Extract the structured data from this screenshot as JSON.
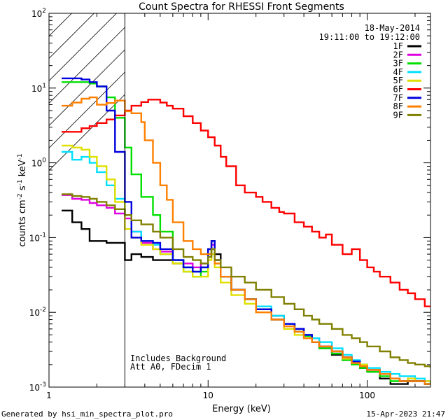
{
  "footer": {
    "generated_by": "Generated by hsi_min_spectra_plot.pro",
    "timestamp": "15-Apr-2023 21:47"
  },
  "chart_data": {
    "type": "line",
    "title": "Count Spectra for RHESSI Front Segments",
    "xlabel": "Energy (keV)",
    "ylabel_parts": {
      "base": "counts cm",
      "exp1": "-2",
      "s": " s",
      "exp2": "-1",
      "kev": " keV",
      "exp3": "-1"
    },
    "xscale": "log",
    "yscale": "log",
    "xlim": [
      1,
      250
    ],
    "ylim": [
      0.001,
      100
    ],
    "x_ticks": [
      {
        "value": 1,
        "label": "1"
      },
      {
        "value": 10,
        "label": "10"
      },
      {
        "value": 100,
        "label": "100"
      }
    ],
    "y_ticks": [
      {
        "value": 0.001,
        "base": "10",
        "exp": "-3"
      },
      {
        "value": 0.01,
        "base": "10",
        "exp": "-2"
      },
      {
        "value": 0.1,
        "base": "10",
        "exp": "-1"
      },
      {
        "value": 1,
        "base": "10",
        "exp": "0"
      },
      {
        "value": 10,
        "base": "10",
        "exp": "1"
      },
      {
        "value": 100,
        "base": "10",
        "exp": "2"
      }
    ],
    "hatched_region": {
      "x_min": 1,
      "x_max": 3
    },
    "date": "18-May-2014",
    "time_range": "19:11:00 to 19:12:00",
    "annotations": [
      "Includes Background",
      "Att A0, FDecim 1"
    ],
    "legend_position": "top-right",
    "series": [
      {
        "name": "1F",
        "color": "#000000",
        "x": [
          1.2,
          1.4,
          1.6,
          1.8,
          2.0,
          2.3,
          2.6,
          3.0,
          3.3,
          3.8,
          4.5,
          5,
          6,
          7,
          8,
          9,
          10,
          10.5,
          11,
          12,
          14,
          17,
          20,
          25,
          30,
          35,
          40,
          45,
          50,
          60,
          70,
          80,
          90,
          100,
          120,
          140,
          160,
          180,
          200,
          230,
          250
        ],
        "y": [
          0.23,
          0.16,
          0.13,
          0.09,
          0.09,
          0.085,
          0.085,
          0.05,
          0.06,
          0.055,
          0.05,
          0.05,
          0.045,
          0.04,
          0.035,
          0.04,
          0.07,
          0.09,
          0.06,
          0.03,
          0.02,
          0.015,
          0.011,
          0.009,
          0.007,
          0.006,
          0.005,
          0.004,
          0.0033,
          0.0027,
          0.0023,
          0.002,
          0.0018,
          0.0016,
          0.0013,
          0.0011,
          0.0011,
          0.0012,
          0.0012,
          0.0011,
          0.0011
        ]
      },
      {
        "name": "2F",
        "color": "#e000e0",
        "x": [
          1.2,
          1.4,
          1.6,
          1.8,
          2.0,
          2.3,
          2.6,
          3.0,
          3.3,
          3.8,
          4.5,
          5,
          6,
          7,
          8,
          9,
          10,
          10.5,
          11,
          12,
          14,
          17,
          20,
          25,
          30,
          35,
          40,
          45,
          50,
          60,
          70,
          80,
          90,
          100,
          120,
          140,
          160,
          180,
          200,
          230,
          250
        ],
        "y": [
          0.37,
          0.33,
          0.32,
          0.29,
          0.27,
          0.25,
          0.21,
          0.18,
          0.12,
          0.085,
          0.07,
          0.065,
          0.05,
          0.045,
          0.04,
          0.045,
          0.06,
          0.08,
          0.05,
          0.03,
          0.02,
          0.015,
          0.011,
          0.008,
          0.007,
          0.006,
          0.005,
          0.0045,
          0.0035,
          0.003,
          0.0025,
          0.0022,
          0.002,
          0.0017,
          0.0015,
          0.0013,
          0.0012,
          0.0013,
          0.0012,
          0.0012,
          0.0012
        ]
      },
      {
        "name": "3F",
        "color": "#00e000",
        "x": [
          1.2,
          1.4,
          1.6,
          1.8,
          2.0,
          2.3,
          2.6,
          3.0,
          3.3,
          3.8,
          4.5,
          5,
          6,
          7,
          8,
          9,
          10,
          10.5,
          11,
          12,
          14,
          17,
          20,
          25,
          30,
          35,
          40,
          45,
          50,
          60,
          70,
          80,
          90,
          100,
          120,
          140,
          160,
          180,
          200,
          230,
          250
        ],
        "y": [
          12,
          12,
          12,
          11.5,
          10.5,
          7.5,
          4,
          1.6,
          0.7,
          0.35,
          0.2,
          0.12,
          0.05,
          0.035,
          0.03,
          0.035,
          0.06,
          0.07,
          0.045,
          0.03,
          0.02,
          0.015,
          0.011,
          0.008,
          0.007,
          0.0055,
          0.0048,
          0.004,
          0.0033,
          0.0028,
          0.0023,
          0.002,
          0.0018,
          0.0016,
          0.0014,
          0.0012,
          0.0012,
          0.0012,
          0.0012,
          0.0011,
          0.0012
        ]
      },
      {
        "name": "4F",
        "color": "#00e0ff",
        "x": [
          1.2,
          1.4,
          1.6,
          1.8,
          2.0,
          2.3,
          2.6,
          3.0,
          3.3,
          3.8,
          4.5,
          5,
          6,
          7,
          8,
          9,
          10,
          10.5,
          11,
          12,
          14,
          17,
          20,
          25,
          30,
          35,
          40,
          45,
          50,
          60,
          70,
          80,
          90,
          100,
          120,
          140,
          160,
          180,
          200,
          230,
          250
        ],
        "y": [
          1.4,
          1.1,
          1.2,
          1.0,
          0.75,
          0.5,
          0.33,
          0.2,
          0.12,
          0.09,
          0.08,
          0.06,
          0.05,
          0.04,
          0.035,
          0.04,
          0.06,
          0.07,
          0.05,
          0.03,
          0.02,
          0.015,
          0.012,
          0.009,
          0.007,
          0.006,
          0.005,
          0.0045,
          0.004,
          0.0033,
          0.0027,
          0.0023,
          0.002,
          0.0018,
          0.0016,
          0.0015,
          0.0014,
          0.0014,
          0.0013,
          0.0012,
          0.0012
        ]
      },
      {
        "name": "5F",
        "color": "#e0e000",
        "x": [
          1.2,
          1.4,
          1.6,
          1.8,
          2.0,
          2.3,
          2.6,
          3.0,
          3.3,
          3.8,
          4.5,
          5,
          6,
          7,
          8,
          9,
          10,
          10.5,
          11,
          12,
          14,
          17,
          20,
          25,
          30,
          35,
          40,
          45,
          50,
          60,
          70,
          80,
          90,
          100,
          120,
          140,
          160,
          180,
          200,
          230,
          250
        ],
        "y": [
          1.7,
          1.6,
          1.5,
          1.2,
          0.9,
          0.6,
          0.3,
          0.13,
          0.1,
          0.08,
          0.07,
          0.06,
          0.045,
          0.035,
          0.03,
          0.03,
          0.05,
          0.06,
          0.04,
          0.025,
          0.017,
          0.013,
          0.01,
          0.008,
          0.006,
          0.005,
          0.0045,
          0.004,
          0.0035,
          0.003,
          0.0024,
          0.0021,
          0.002,
          0.0017,
          0.0015,
          0.0013,
          0.0012,
          0.0013,
          0.0012,
          0.0012,
          0.0012
        ]
      },
      {
        "name": "6F",
        "color": "#ff0000",
        "x": [
          1.2,
          1.4,
          1.6,
          1.8,
          2.0,
          2.3,
          2.6,
          3.0,
          3.3,
          3.8,
          4.2,
          4.5,
          5,
          5.5,
          6,
          7,
          8,
          9,
          10,
          11,
          12,
          13,
          15,
          17,
          20,
          22,
          25,
          28,
          30,
          35,
          40,
          45,
          50,
          55,
          60,
          70,
          80,
          90,
          100,
          110,
          120,
          140,
          160,
          180,
          200,
          230,
          250
        ],
        "y": [
          2.6,
          2.6,
          2.9,
          3.1,
          3.4,
          3.8,
          4.3,
          5.0,
          5.8,
          6.5,
          7.0,
          7.0,
          6.4,
          5.8,
          5.3,
          4.2,
          3.4,
          2.7,
          2.2,
          1.7,
          1.2,
          0.9,
          0.5,
          0.4,
          0.35,
          0.3,
          0.25,
          0.22,
          0.21,
          0.16,
          0.14,
          0.12,
          0.1,
          0.11,
          0.08,
          0.06,
          0.07,
          0.05,
          0.04,
          0.035,
          0.03,
          0.025,
          0.02,
          0.018,
          0.015,
          0.012,
          0.012
        ]
      },
      {
        "name": "7F",
        "color": "#0000e0",
        "x": [
          1.2,
          1.4,
          1.6,
          1.8,
          2.0,
          2.3,
          2.6,
          3.0,
          3.3,
          3.8,
          4.5,
          5,
          6,
          7,
          8,
          9,
          10,
          10.5,
          11,
          12,
          14,
          17,
          20,
          25,
          30,
          35,
          40,
          45,
          50,
          60,
          70,
          80,
          90,
          100,
          120,
          140,
          160,
          180,
          200,
          230,
          250
        ],
        "y": [
          13.5,
          13.5,
          13,
          12,
          10.5,
          5,
          1.4,
          0.3,
          0.1,
          0.09,
          0.085,
          0.07,
          0.05,
          0.04,
          0.035,
          0.04,
          0.07,
          0.09,
          0.05,
          0.03,
          0.02,
          0.015,
          0.011,
          0.008,
          0.007,
          0.006,
          0.005,
          0.004,
          0.0035,
          0.003,
          0.0025,
          0.0022,
          0.0019,
          0.0017,
          0.0015,
          0.0013,
          0.0012,
          0.0012,
          0.0012,
          0.0011,
          0.0011
        ]
      },
      {
        "name": "8F",
        "color": "#ff8000",
        "x": [
          1.2,
          1.4,
          1.6,
          1.8,
          2.0,
          2.3,
          2.6,
          3.0,
          3.3,
          3.8,
          4.0,
          4.5,
          5,
          5.5,
          6,
          7,
          8,
          9,
          10,
          10.5,
          11,
          12,
          14,
          17,
          20,
          25,
          30,
          35,
          40,
          45,
          50,
          60,
          70,
          80,
          90,
          100,
          120,
          140,
          160,
          180,
          200,
          230,
          250
        ],
        "y": [
          5.8,
          6.4,
          7.2,
          7.5,
          6.0,
          6.3,
          6.8,
          4.9,
          4.6,
          3.5,
          2.0,
          1.0,
          0.5,
          0.32,
          0.16,
          0.09,
          0.07,
          0.06,
          0.06,
          0.07,
          0.045,
          0.03,
          0.02,
          0.015,
          0.01,
          0.008,
          0.0065,
          0.0055,
          0.0045,
          0.004,
          0.0035,
          0.003,
          0.0025,
          0.0021,
          0.0019,
          0.0017,
          0.0015,
          0.0013,
          0.0012,
          0.0012,
          0.0012,
          0.0011,
          0.0011
        ]
      },
      {
        "name": "9F",
        "color": "#808000",
        "x": [
          1.2,
          1.4,
          1.6,
          1.8,
          2.0,
          2.3,
          2.6,
          3.0,
          3.3,
          3.8,
          4.5,
          5,
          6,
          7,
          8,
          9,
          10,
          10.5,
          11,
          12,
          14,
          17,
          20,
          25,
          30,
          35,
          40,
          45,
          50,
          60,
          70,
          80,
          90,
          100,
          120,
          140,
          160,
          180,
          200,
          230,
          250
        ],
        "y": [
          0.38,
          0.36,
          0.35,
          0.33,
          0.3,
          0.27,
          0.24,
          0.2,
          0.17,
          0.15,
          0.12,
          0.1,
          0.07,
          0.055,
          0.05,
          0.045,
          0.055,
          0.07,
          0.05,
          0.04,
          0.03,
          0.025,
          0.02,
          0.016,
          0.013,
          0.011,
          0.009,
          0.008,
          0.007,
          0.006,
          0.005,
          0.0045,
          0.004,
          0.0035,
          0.003,
          0.0025,
          0.0023,
          0.0021,
          0.002,
          0.0019,
          0.0018
        ]
      }
    ]
  }
}
